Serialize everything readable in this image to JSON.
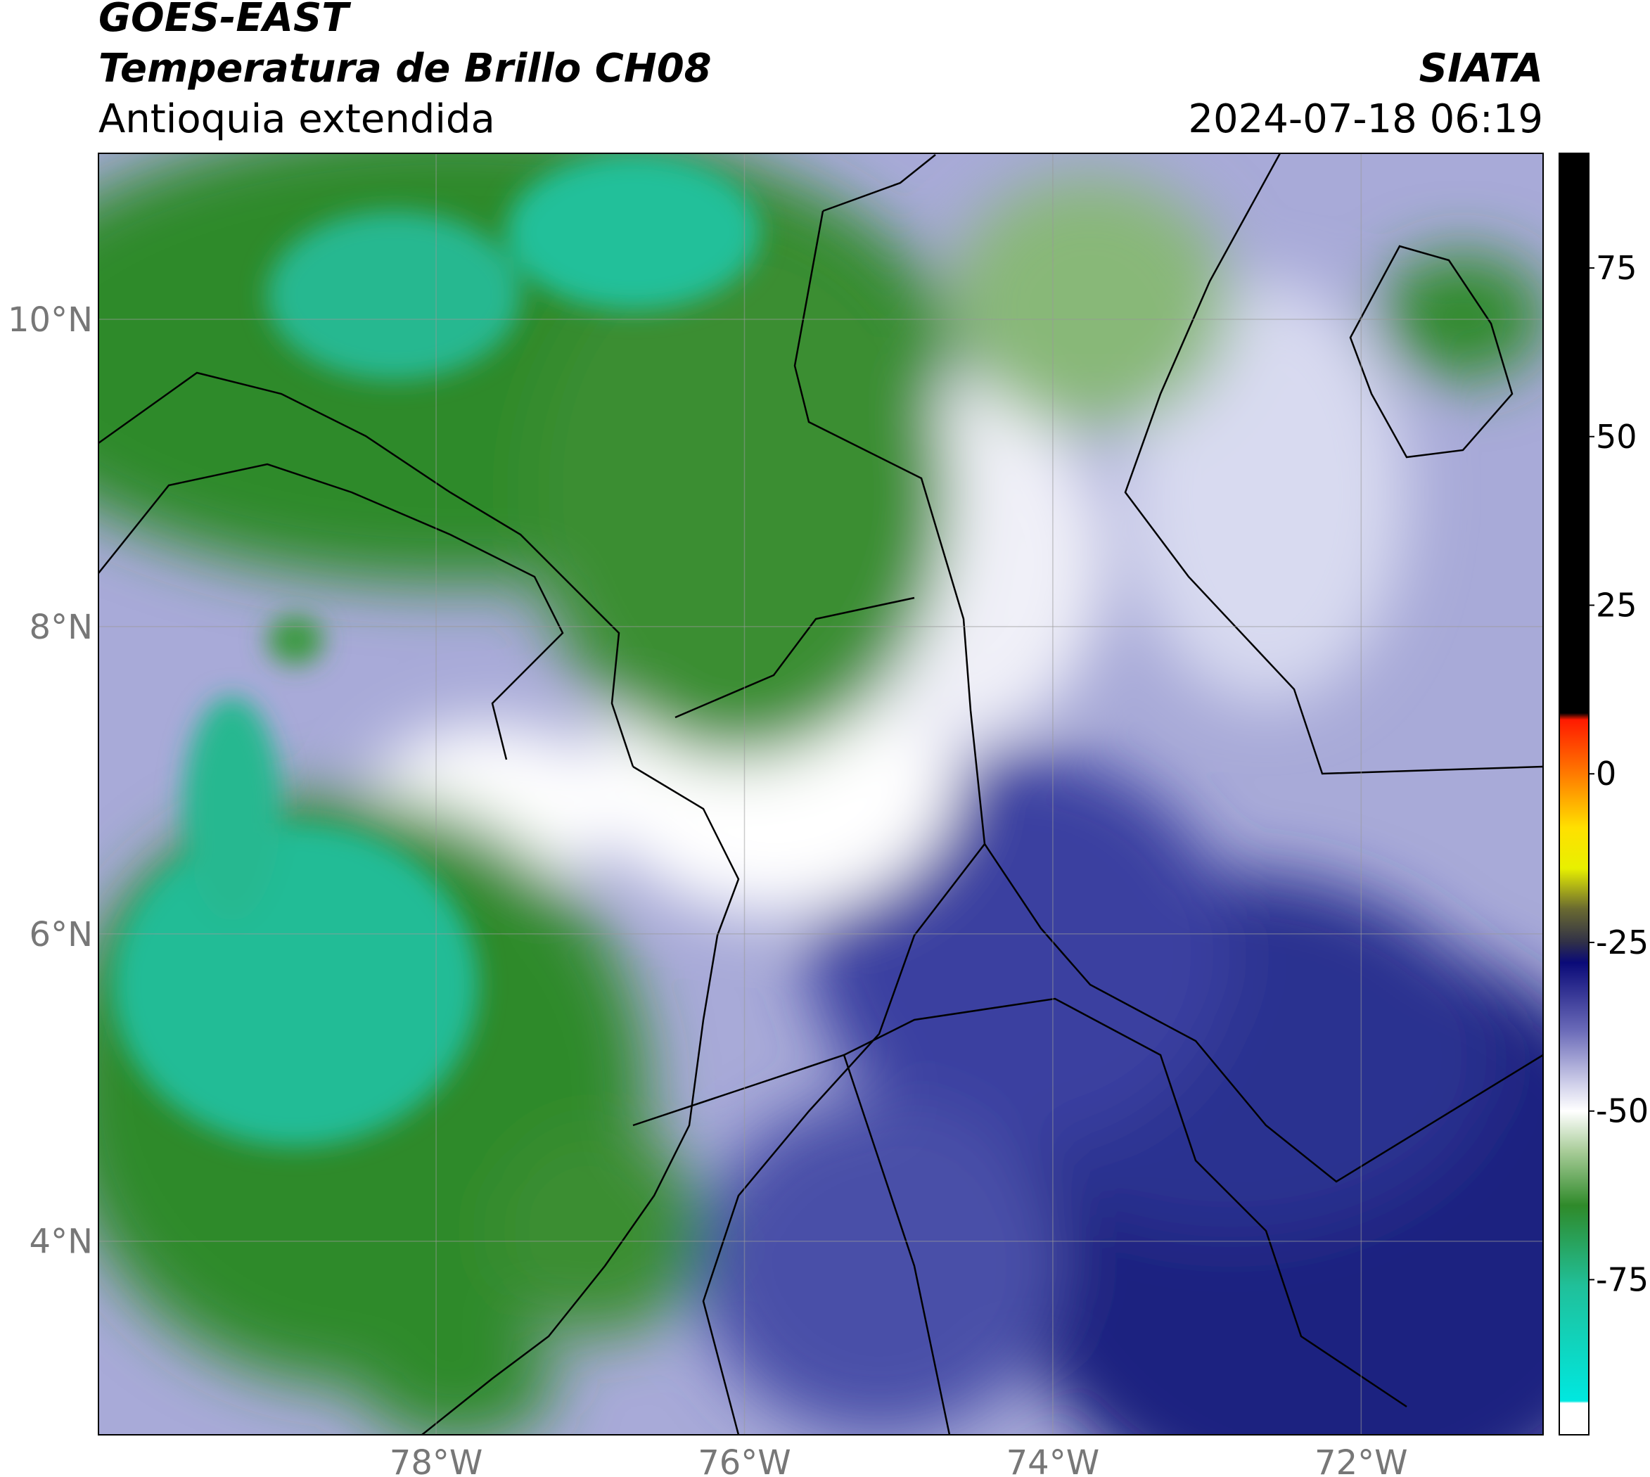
{
  "header": {
    "title": "GOES-EAST",
    "subtitle": "Temperatura de Brillo CH08",
    "region": "Antioquia extendida",
    "source": "SIATA",
    "datetime": "2024-07-18 06:19"
  },
  "map": {
    "xlim": [
      -80.19,
      -70.82
    ],
    "ylim": [
      2.74,
      11.08
    ],
    "xticks": [
      {
        "value": -78,
        "label": "78°W"
      },
      {
        "value": -76,
        "label": "76°W"
      },
      {
        "value": -74,
        "label": "74°W"
      },
      {
        "value": -72,
        "label": "72°W"
      }
    ],
    "yticks": [
      {
        "value": 10,
        "label": "10°N"
      },
      {
        "value": 8,
        "label": "8°N"
      },
      {
        "value": 6,
        "label": "6°N"
      },
      {
        "value": 4,
        "label": "4°N"
      }
    ],
    "grid": true
  },
  "colorbar": {
    "lim": [
      -98,
      92
    ],
    "ticks": [
      75,
      50,
      25,
      0,
      -25,
      -50,
      -75
    ],
    "stops": [
      [
        92,
        "#000000"
      ],
      [
        9,
        "#000000"
      ],
      [
        8,
        "#ff1a00"
      ],
      [
        0,
        "#ff7a00"
      ],
      [
        -8,
        "#ffe000"
      ],
      [
        -14,
        "#e8f000"
      ],
      [
        -20,
        "#6a6a30"
      ],
      [
        -25,
        "#303048"
      ],
      [
        -28,
        "#0a0a78"
      ],
      [
        -38,
        "#6a6ab8"
      ],
      [
        -46,
        "#d0d0ea"
      ],
      [
        -50,
        "#ffffff"
      ],
      [
        -56,
        "#a8cc98"
      ],
      [
        -64,
        "#2f8a2a"
      ],
      [
        -76,
        "#20c09a"
      ],
      [
        -93,
        "#00e8e0"
      ],
      [
        -93.3,
        "#ffffff"
      ],
      [
        -98,
        "#ffffff"
      ]
    ]
  }
}
